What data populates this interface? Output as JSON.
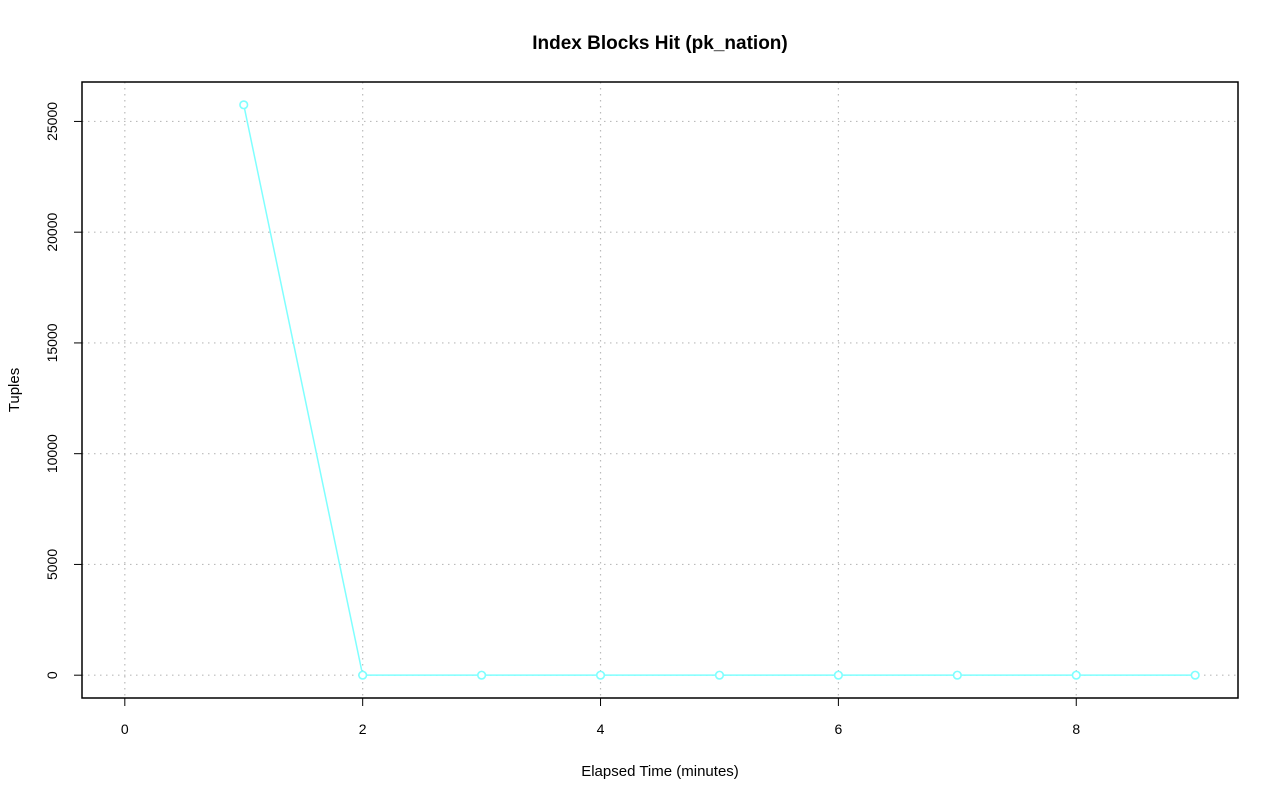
{
  "chart_data": {
    "type": "line",
    "title": "Index Blocks Hit (pk_nation)",
    "xlabel": "Elapsed Time (minutes)",
    "ylabel": "Tuples",
    "x": [
      1,
      2,
      3,
      4,
      5,
      6,
      7,
      8,
      9
    ],
    "series": [
      {
        "values": [
          25750,
          0,
          0,
          0,
          0,
          0,
          0,
          0,
          0
        ],
        "color": "#7fffff"
      }
    ],
    "xlim": [
      0,
      9
    ],
    "ylim": [
      0,
      25750
    ],
    "xticks": [
      0,
      2,
      4,
      6,
      8
    ],
    "yticks": [
      0,
      5000,
      10000,
      15000,
      20000,
      25000
    ],
    "grid": true,
    "markers": "open-circle"
  }
}
